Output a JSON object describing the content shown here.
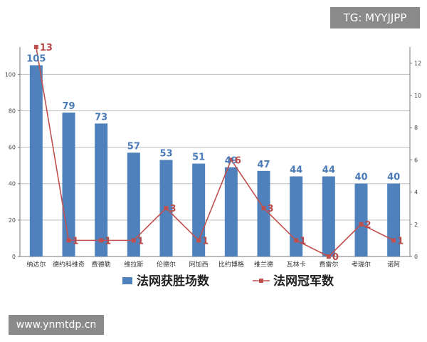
{
  "watermark_top": "TG: MYYJJPP",
  "watermark_bottom": "www.ynmtdp.cn",
  "colors": {
    "bar": "#4f81bd",
    "line": "#c0504d"
  },
  "chart_data": {
    "type": "bar",
    "categories": [
      "纳达尔",
      "德约科维奇",
      "费德勒",
      "维拉斯",
      "伦德尔",
      "阿加西",
      "比约博格",
      "维兰德",
      "瓦林卡",
      "费雷尔",
      "考瑞尔",
      "诺阿"
    ],
    "series": [
      {
        "name": "法网获胜场数",
        "type": "bar",
        "axis": "left",
        "values": [
          105,
          79,
          73,
          57,
          53,
          51,
          49,
          47,
          44,
          44,
          40,
          40
        ]
      },
      {
        "name": "法网冠军数",
        "type": "line",
        "axis": "right",
        "values": [
          13,
          1,
          1,
          1,
          3,
          1,
          6,
          3,
          1,
          0,
          2,
          1
        ]
      }
    ],
    "ylim": [
      0,
      115
    ],
    "yticks": [
      0,
      20,
      40,
      60,
      80,
      100
    ],
    "y2lim": [
      0,
      13
    ],
    "y2ticks": [
      0,
      2,
      4,
      6,
      8,
      10,
      12
    ],
    "grid": true,
    "legend": "bottom"
  }
}
